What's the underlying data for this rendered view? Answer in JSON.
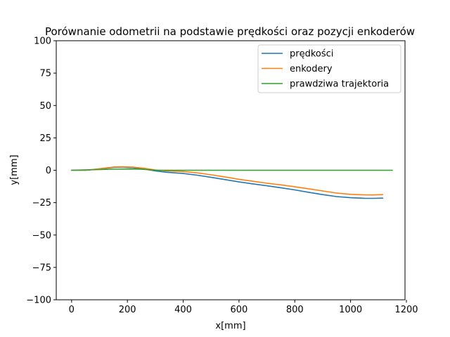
{
  "chart_data": {
    "type": "line",
    "title": "Porównanie odometrii na podstawie prędkości oraz pozycji enkoderów",
    "xlabel": "x[mm]",
    "ylabel": "y[mm]",
    "xlim": [
      -55,
      1195
    ],
    "ylim": [
      -100,
      100
    ],
    "xticks": [
      0,
      200,
      400,
      600,
      800,
      1000,
      1200
    ],
    "yticks": [
      100,
      75,
      50,
      25,
      0,
      -25,
      -50,
      -75,
      -100
    ],
    "xtick_labels": [
      "0",
      "200",
      "400",
      "600",
      "800",
      "1000",
      "1200"
    ],
    "ytick_labels": [
      "100",
      "75",
      "50",
      "25",
      "0",
      "−25",
      "−50",
      "−75",
      "−100"
    ],
    "grid": false,
    "legend_position": "top-right",
    "series": [
      {
        "name": "prędkości",
        "color": "#1f77b4",
        "x": [
          0,
          50,
          100,
          150,
          180,
          220,
          260,
          300,
          340,
          400,
          450,
          500,
          550,
          600,
          650,
          700,
          750,
          800,
          850,
          900,
          950,
          1000,
          1050,
          1080,
          1115
        ],
        "y": [
          0,
          0,
          1,
          2.2,
          2.5,
          2,
          1,
          -0.5,
          -1.5,
          -2.5,
          -3.8,
          -5.5,
          -7.2,
          -9,
          -10.5,
          -12,
          -13.5,
          -15.2,
          -17,
          -18.8,
          -20.3,
          -21.2,
          -21.6,
          -21.7,
          -21.5
        ]
      },
      {
        "name": "enkodery",
        "color": "#ff7f0e",
        "x": [
          0,
          50,
          100,
          150,
          180,
          220,
          260,
          300,
          340,
          400,
          450,
          500,
          550,
          600,
          650,
          700,
          750,
          800,
          850,
          900,
          950,
          1000,
          1050,
          1080,
          1115
        ],
        "y": [
          0,
          0,
          1.2,
          2.5,
          2.7,
          2.4,
          1.5,
          0.2,
          -0.5,
          -1,
          -2,
          -3.5,
          -5.2,
          -7,
          -8.5,
          -10,
          -11.3,
          -12.8,
          -14.3,
          -16,
          -17.6,
          -18.6,
          -19,
          -19.1,
          -18.8
        ]
      },
      {
        "name": "prawdziwa trajektoria",
        "color": "#2ca02c",
        "x": [
          0,
          150,
          200,
          250,
          300,
          400,
          1150
        ],
        "y": [
          0,
          0.8,
          1,
          0.8,
          0,
          0,
          0
        ]
      }
    ]
  }
}
